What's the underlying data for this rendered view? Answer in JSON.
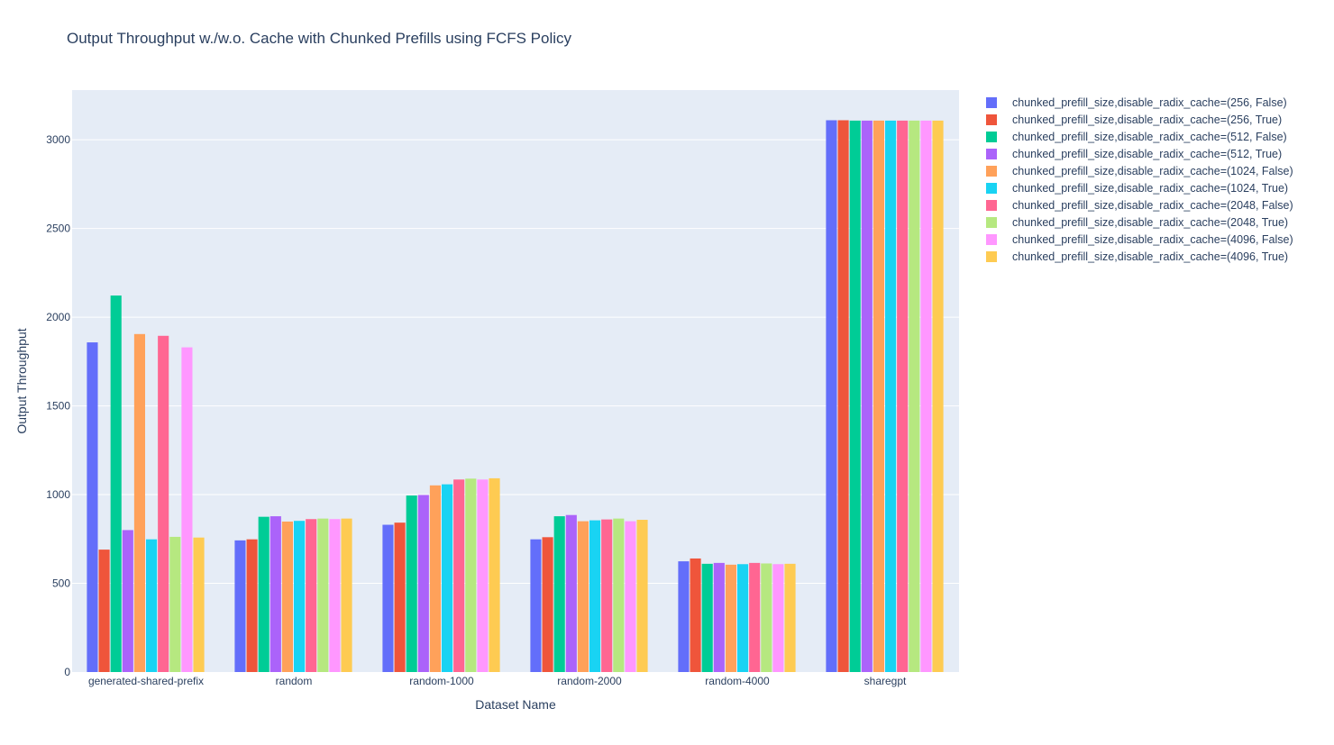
{
  "chart_data": {
    "type": "bar",
    "title": "Output Throughput w./w.o. Cache with Chunked Prefills using FCFS Policy",
    "xlabel": "Dataset Name",
    "ylabel": "Output Throughput",
    "ylim": [
      0,
      3280
    ],
    "yticks": [
      0,
      500,
      1000,
      1500,
      2000,
      2500,
      3000
    ],
    "ytick_labels": [
      "0",
      "500",
      "1000",
      "1500",
      "2000",
      "2500",
      "3000"
    ],
    "grid": true,
    "legend_position": "right",
    "categories": [
      "generated-shared-prefix",
      "random",
      "random-1000",
      "random-2000",
      "random-4000",
      "sharegpt"
    ],
    "series": [
      {
        "name": "chunked_prefill_size,disable_radix_cache=(256, False)",
        "color": "#636efa",
        "values": [
          1858,
          742,
          830,
          748,
          624,
          3110
        ]
      },
      {
        "name": "chunked_prefill_size,disable_radix_cache=(256, True)",
        "color": "#ef553b",
        "values": [
          690,
          748,
          842,
          760,
          640,
          3110
        ]
      },
      {
        "name": "chunked_prefill_size,disable_radix_cache=(512, False)",
        "color": "#00cc96",
        "values": [
          2122,
          875,
          995,
          878,
          610,
          3108
        ]
      },
      {
        "name": "chunked_prefill_size,disable_radix_cache=(512, True)",
        "color": "#ab63fa",
        "values": [
          800,
          878,
          998,
          885,
          615,
          3108
        ]
      },
      {
        "name": "chunked_prefill_size,disable_radix_cache=(1024, False)",
        "color": "#ffa15a",
        "values": [
          1905,
          848,
          1052,
          850,
          605,
          3108
        ]
      },
      {
        "name": "chunked_prefill_size,disable_radix_cache=(1024, True)",
        "color": "#19d3f3",
        "values": [
          748,
          852,
          1058,
          855,
          608,
          3108
        ]
      },
      {
        "name": "chunked_prefill_size,disable_radix_cache=(2048, False)",
        "color": "#ff6692",
        "values": [
          1895,
          862,
          1085,
          860,
          615,
          3108
        ]
      },
      {
        "name": "chunked_prefill_size,disable_radix_cache=(2048, True)",
        "color": "#b6e880",
        "values": [
          762,
          865,
          1090,
          865,
          612,
          3108
        ]
      },
      {
        "name": "chunked_prefill_size,disable_radix_cache=(4096, False)",
        "color": "#ff97ff",
        "values": [
          1830,
          862,
          1085,
          850,
          608,
          3108
        ]
      },
      {
        "name": "chunked_prefill_size,disable_radix_cache=(4096, True)",
        "color": "#fecb52",
        "values": [
          758,
          865,
          1092,
          858,
          610,
          3108
        ]
      }
    ]
  }
}
